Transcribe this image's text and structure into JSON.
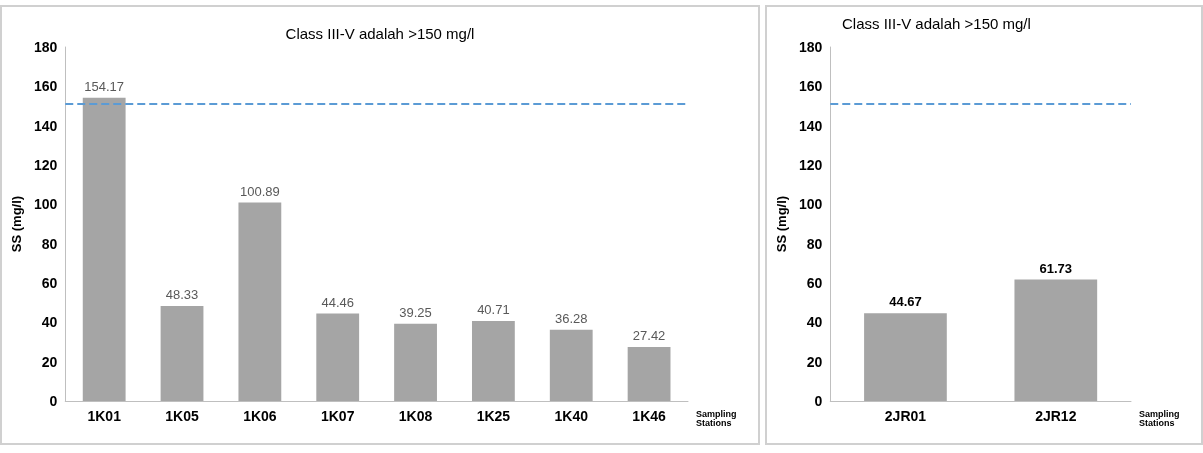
{
  "chart_data": [
    {
      "type": "bar",
      "title": "Class III-V adalah >150 mg/l",
      "ylabel": "SS (mg/l)",
      "xlabel": "Sampling\nStations",
      "categories": [
        "1K01",
        "1K05",
        "1K06",
        "1K07",
        "1K08",
        "1K25",
        "1K40",
        "1K46"
      ],
      "values": [
        154.17,
        48.33,
        100.89,
        44.46,
        39.25,
        40.71,
        36.28,
        27.42
      ],
      "color": "#a5a5a5",
      "ylim": [
        0,
        180
      ],
      "yticks": [
        0,
        20,
        40,
        60,
        80,
        100,
        120,
        140,
        160,
        180
      ],
      "grid": false,
      "data_labels": true,
      "ref_lines": [
        {
          "axis": "y",
          "value": 151,
          "color": "#5b9bd5",
          "line_style": "dashed"
        }
      ]
    },
    {
      "type": "bar",
      "title": "Class III-V adalah >150 mg/l",
      "ylabel": "SS (mg/l)",
      "xlabel": "Sampling\nStations",
      "categories": [
        "2JR01",
        "2JR12"
      ],
      "values": [
        44.67,
        61.73
      ],
      "color": "#a5a5a5",
      "ylim": [
        0,
        180
      ],
      "yticks": [
        0,
        20,
        40,
        60,
        80,
        100,
        120,
        140,
        160,
        180
      ],
      "grid": false,
      "data_labels": true,
      "ref_lines": [
        {
          "axis": "y",
          "value": 151,
          "color": "#5b9bd5",
          "line_style": "dashed"
        }
      ]
    }
  ]
}
